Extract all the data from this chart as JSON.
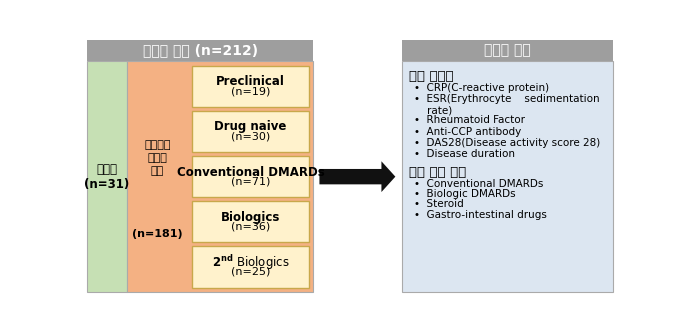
{
  "title_left": "대상자 모집 (n=212)",
  "title_right": "대상자 정보",
  "title_bg": "#9e9e9e",
  "title_text_color": "#ffffff",
  "left_box_label": "정상인\n(n=31)",
  "left_box_color": "#c6e0b4",
  "middle_box_label": "류마티스\n관절염\n환자\n\n(n=181)",
  "middle_box_color": "#f4b183",
  "sub_boxes": [
    {
      "label_main": "Preclinical",
      "label_sub": "(n=19)"
    },
    {
      "label_main": "Drug naive",
      "label_sub": "(n=30)"
    },
    {
      "label_main": "Conventional DMARDs",
      "label_sub": "(n=71)"
    },
    {
      "label_main": "Biologics",
      "label_sub": "(n=36)"
    },
    {
      "label_main": "2nd Biologics",
      "label_sub": "(n=25)"
    }
  ],
  "sub_box_color": "#fff2cc",
  "sub_box_border": "#c8a84b",
  "right_bg_color": "#dce6f1",
  "right_title1": "환자 임상상",
  "right_items1": [
    "CRP(C-reactive protein)",
    "ESR(Erythrocyte    sedimentation\n    rate)",
    "Rheumatoid Factor",
    "Anti-CCP antibody",
    "DAS28(Disease activity score 28)",
    "Disease duration"
  ],
  "right_title2": "환자 투약 정보",
  "right_items2": [
    "Conventional DMARDs",
    "Biologic DMARDs",
    "Steroid",
    "Gastro-intestinal drugs"
  ],
  "arrow_color": "#111111",
  "border_color": "#aaaaaa",
  "figsize": [
    6.83,
    3.3
  ],
  "dpi": 100
}
